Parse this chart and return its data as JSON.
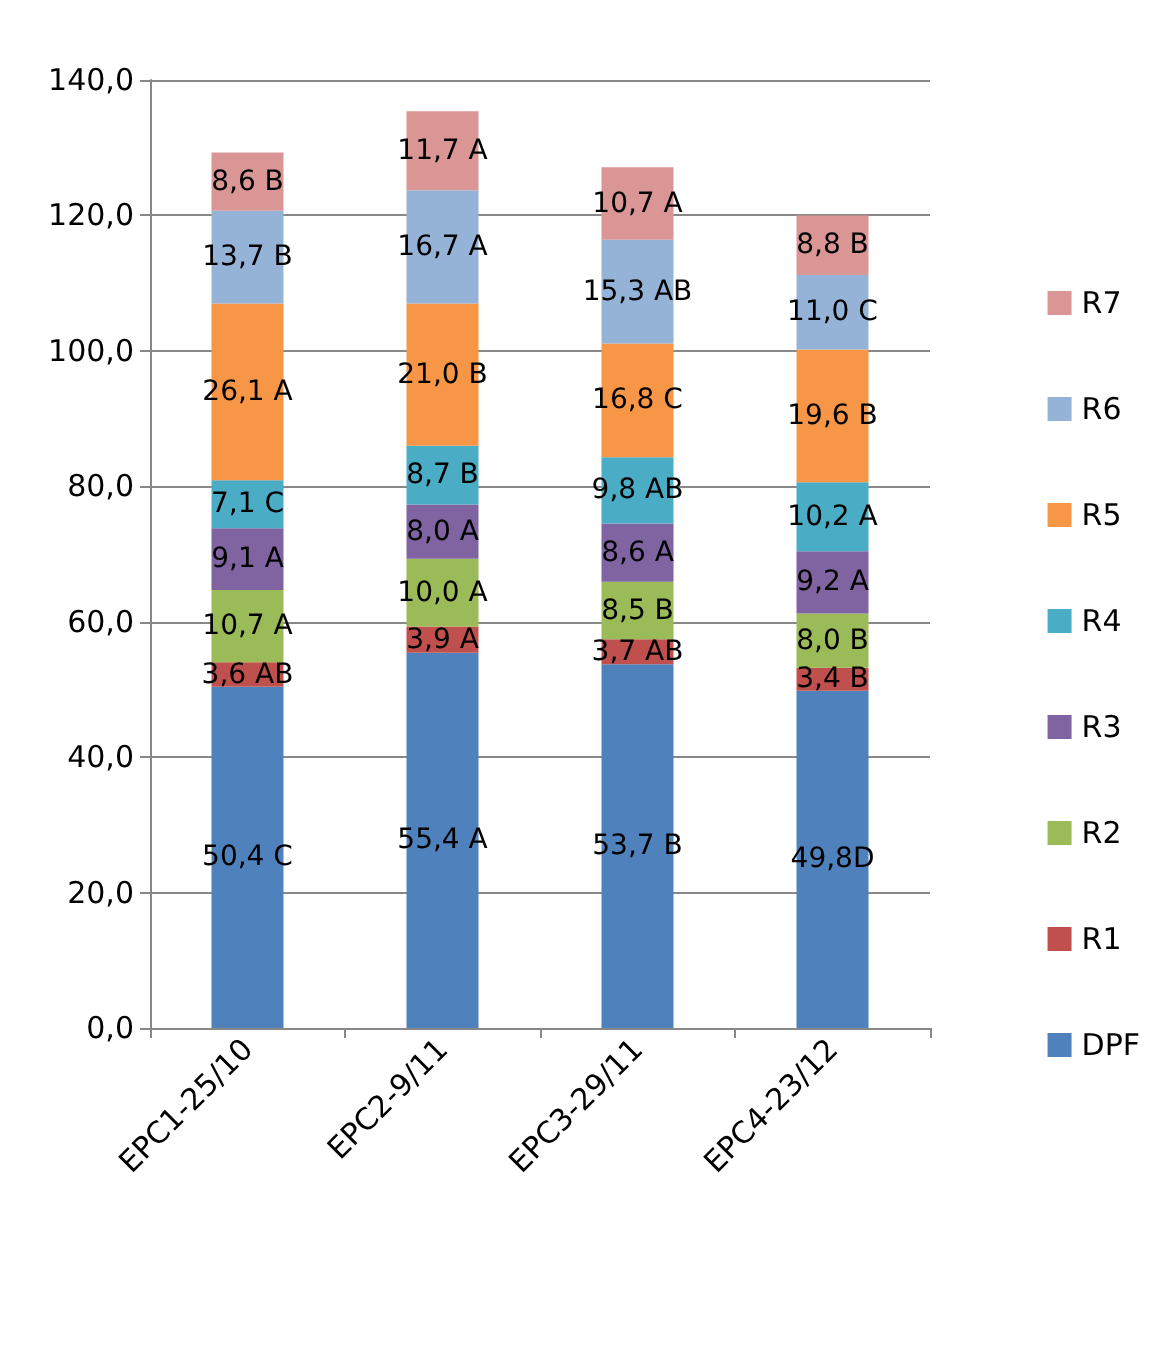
{
  "chart_data": {
    "type": "bar",
    "stacked": true,
    "categories": [
      "EPC1-25/10",
      "EPC2-9/11",
      "EPC3-29/11",
      "EPC4-23/12"
    ],
    "series": [
      {
        "name": "DPF",
        "color": "#4f81bd",
        "values": [
          50.4,
          55.4,
          53.7,
          49.8
        ],
        "value_labels": [
          "50,4 C",
          "55,4 A",
          "53,7 B",
          "49,8D"
        ]
      },
      {
        "name": "R1",
        "color": "#c0504d",
        "values": [
          3.6,
          3.9,
          3.7,
          3.4
        ],
        "value_labels": [
          "3,6 AB",
          "3,9 A",
          "3,7 AB",
          "3,4 B"
        ]
      },
      {
        "name": "R2",
        "color": "#9bbb59",
        "values": [
          10.7,
          10.0,
          8.5,
          8.0
        ],
        "value_labels": [
          "10,7 A",
          "10,0 A",
          "8,5 B",
          "8,0 B"
        ]
      },
      {
        "name": "R3",
        "color": "#8064a2",
        "values": [
          9.1,
          8.0,
          8.6,
          9.2
        ],
        "value_labels": [
          "9,1 A",
          "8,0 A",
          "8,6 A",
          "9,2 A"
        ]
      },
      {
        "name": "R4",
        "color": "#4bacc6",
        "values": [
          7.1,
          8.7,
          9.8,
          10.2
        ],
        "value_labels": [
          "7,1 C",
          "8,7 B",
          "9,8 AB",
          "10,2 A"
        ]
      },
      {
        "name": "R5",
        "color": "#f79646",
        "values": [
          26.1,
          21.0,
          16.8,
          19.6
        ],
        "value_labels": [
          "26,1 A",
          "21,0 B",
          "16,8 C",
          "19,6 B"
        ]
      },
      {
        "name": "R6",
        "color": "#95b3d7",
        "values": [
          13.7,
          16.7,
          15.3,
          11.0
        ],
        "value_labels": [
          "13,7 B",
          "16,7 A",
          "15,3 AB",
          "11,0 C"
        ]
      },
      {
        "name": "R7",
        "color": "#d99694",
        "values": [
          8.6,
          11.7,
          10.7,
          8.8
        ],
        "value_labels": [
          "8,6 B",
          "11,7 A",
          "10,7 A",
          "8,8 B"
        ]
      }
    ],
    "ylim": [
      0,
      140
    ],
    "yticks": [
      {
        "value": 0,
        "label": "0,0"
      },
      {
        "value": 20,
        "label": "20,0"
      },
      {
        "value": 40,
        "label": "40,0"
      },
      {
        "value": 60,
        "label": "60,0"
      },
      {
        "value": 80,
        "label": "80,0"
      },
      {
        "value": 100,
        "label": "100,0"
      },
      {
        "value": 120,
        "label": "120,0"
      },
      {
        "value": 140,
        "label": "140,0"
      }
    ],
    "grid": "y",
    "legend": "right"
  }
}
